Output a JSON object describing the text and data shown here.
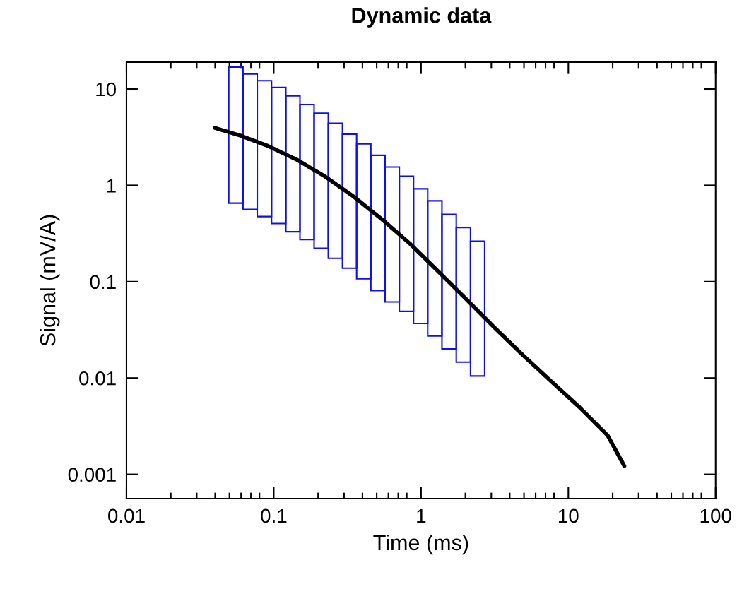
{
  "chart_data": {
    "type": "bar",
    "title": "Dynamic data",
    "xlabel": "Time (ms)",
    "ylabel": "Signal (mV/A)",
    "log": "xy",
    "xlim": [
      0.01,
      100
    ],
    "ylim": [
      0.00056,
      19
    ],
    "grid": false,
    "line_style": "solid",
    "marker": "none",
    "xticks": [
      0.01,
      {
        "value": 0.02,
        "label": null
      },
      {
        "value": 0.03,
        "label": null
      },
      {
        "value": 0.04,
        "label": null
      },
      {
        "value": 0.05,
        "label": null
      },
      {
        "value": 0.06,
        "label": null
      },
      {
        "value": 0.07,
        "label": null
      },
      {
        "value": 0.08,
        "label": null
      },
      0.1,
      {
        "value": 0.2,
        "label": null
      },
      {
        "value": 0.3,
        "label": null
      },
      {
        "value": 0.4,
        "label": null
      },
      {
        "value": 0.5,
        "label": null
      },
      {
        "value": 0.6,
        "label": null
      },
      {
        "value": 0.7,
        "label": null
      },
      {
        "value": 0.8,
        "label": null
      },
      1,
      {
        "value": 2,
        "label": null
      },
      {
        "value": 3,
        "label": null
      },
      {
        "value": 4,
        "label": null
      },
      {
        "value": 5,
        "label": null
      },
      {
        "value": 6,
        "label": null
      },
      {
        "value": 7,
        "label": null
      },
      {
        "value": 8,
        "label": null
      },
      10,
      {
        "value": 20,
        "label": null
      },
      {
        "value": 30,
        "label": null
      },
      {
        "value": 40,
        "label": null
      },
      {
        "value": 50,
        "label": null
      },
      {
        "value": 60,
        "label": null
      },
      {
        "value": 70,
        "label": null
      },
      {
        "value": 80,
        "label": null
      },
      100
    ],
    "yticks": [
      0.001,
      0.01,
      0.1,
      1,
      10
    ],
    "series": [
      {
        "type": "bar",
        "color": "#1010e0",
        "x": [
          0.0553,
          0.0691,
          0.0863,
          0.108,
          0.135,
          0.168,
          0.21,
          0.262,
          0.327,
          0.408,
          0.51,
          0.637,
          0.796,
          0.993,
          1.24,
          1.55,
          1.94,
          2.42
        ],
        "base": [
          0.653,
          0.561,
          0.474,
          0.401,
          0.33,
          0.274,
          0.222,
          0.175,
          0.138,
          0.107,
          0.0807,
          0.0617,
          0.0492,
          0.0368,
          0.0273,
          0.02,
          0.0146,
          0.0105
        ],
        "values": [
          16.25,
          13.74,
          11.73,
          10.0,
          8.17,
          6.63,
          5.38,
          4.23,
          3.26,
          2.59,
          1.969,
          1.488,
          1.191,
          0.883,
          0.663,
          0.48,
          0.35,
          0.2525
        ]
      },
      {
        "type": "line",
        "color": "#000000",
        "x": [
          0.0398,
          0.0591,
          0.092,
          0.143,
          0.223,
          0.347,
          0.538,
          0.838,
          1.3,
          2.03,
          3.15,
          4.91,
          7.63,
          11.9,
          18.5,
          24.0
        ],
        "values": [
          3.95,
          3.29,
          2.55,
          1.85,
          1.235,
          0.769,
          0.449,
          0.249,
          0.129,
          0.0656,
          0.0334,
          0.0173,
          0.00927,
          0.00497,
          0.00253,
          0.00122
        ]
      }
    ]
  }
}
